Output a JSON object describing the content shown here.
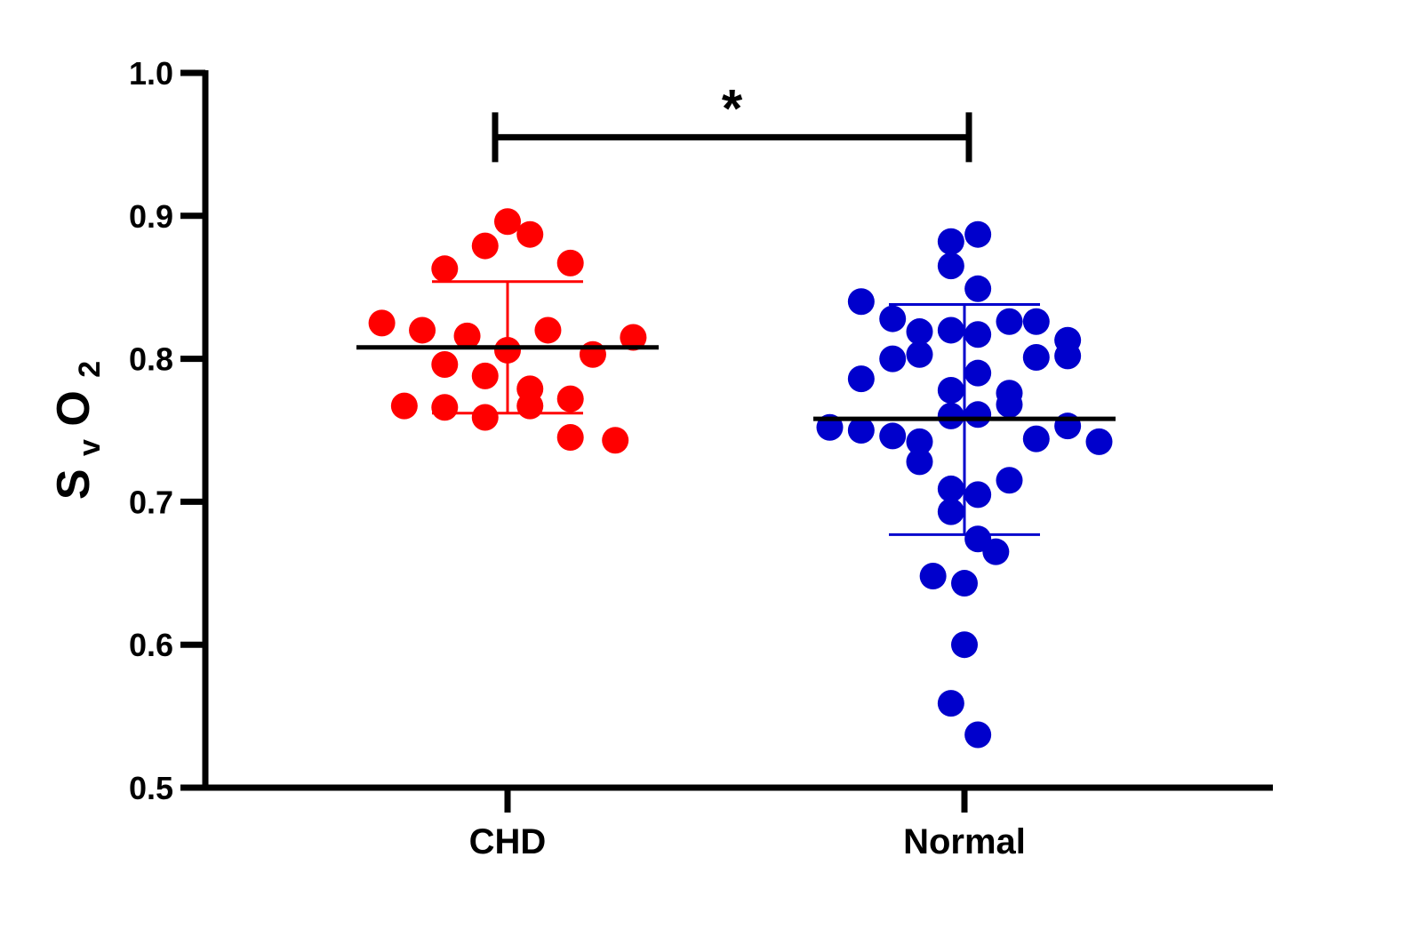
{
  "chart_data": {
    "type": "scatter",
    "title": "",
    "xlabel": "",
    "ylabel": {
      "base": "S",
      "sub1": "v",
      "mid": "O",
      "sub2": "2"
    },
    "ylim": [
      0.5,
      1.0
    ],
    "yticks": [
      "0.5",
      "0.6",
      "0.7",
      "0.8",
      "0.9",
      "1.0"
    ],
    "categories": [
      "CHD",
      "Normal"
    ],
    "significance": {
      "label": "*",
      "between": [
        "CHD",
        "Normal"
      ],
      "y": 0.955
    },
    "series": [
      {
        "name": "CHD",
        "color": "#ff0000",
        "mean": 0.808,
        "sd_upper": 0.854,
        "sd_lower": 0.762,
        "points": [
          {
            "x": 0.0,
            "y": 0.896
          },
          {
            "x": 0.05,
            "y": 0.887
          },
          {
            "x": -0.05,
            "y": 0.879
          },
          {
            "x": -0.14,
            "y": 0.863
          },
          {
            "x": 0.14,
            "y": 0.867
          },
          {
            "x": -0.28,
            "y": 0.825
          },
          {
            "x": -0.19,
            "y": 0.82
          },
          {
            "x": -0.09,
            "y": 0.816
          },
          {
            "x": 0.0,
            "y": 0.806
          },
          {
            "x": 0.09,
            "y": 0.82
          },
          {
            "x": 0.19,
            "y": 0.803
          },
          {
            "x": 0.28,
            "y": 0.815
          },
          {
            "x": -0.14,
            "y": 0.796
          },
          {
            "x": -0.05,
            "y": 0.788
          },
          {
            "x": 0.05,
            "y": 0.779
          },
          {
            "x": 0.14,
            "y": 0.772
          },
          {
            "x": -0.23,
            "y": 0.767
          },
          {
            "x": -0.14,
            "y": 0.766
          },
          {
            "x": 0.05,
            "y": 0.767
          },
          {
            "x": -0.05,
            "y": 0.759
          },
          {
            "x": 0.14,
            "y": 0.745
          },
          {
            "x": 0.24,
            "y": 0.743
          }
        ]
      },
      {
        "name": "Normal",
        "color": "#0000cc",
        "mean": 0.758,
        "sd_upper": 0.838,
        "sd_lower": 0.677,
        "points": [
          {
            "x": 0.03,
            "y": 0.887
          },
          {
            "x": -0.03,
            "y": 0.882
          },
          {
            "x": -0.03,
            "y": 0.865
          },
          {
            "x": 0.03,
            "y": 0.849
          },
          {
            "x": -0.23,
            "y": 0.84
          },
          {
            "x": -0.16,
            "y": 0.828
          },
          {
            "x": 0.1,
            "y": 0.826
          },
          {
            "x": 0.16,
            "y": 0.826
          },
          {
            "x": -0.1,
            "y": 0.819
          },
          {
            "x": -0.03,
            "y": 0.82
          },
          {
            "x": 0.03,
            "y": 0.817
          },
          {
            "x": 0.23,
            "y": 0.813
          },
          {
            "x": -0.1,
            "y": 0.803
          },
          {
            "x": -0.16,
            "y": 0.8
          },
          {
            "x": 0.16,
            "y": 0.801
          },
          {
            "x": 0.23,
            "y": 0.802
          },
          {
            "x": 0.03,
            "y": 0.79
          },
          {
            "x": -0.23,
            "y": 0.786
          },
          {
            "x": -0.03,
            "y": 0.778
          },
          {
            "x": 0.1,
            "y": 0.776
          },
          {
            "x": 0.1,
            "y": 0.768
          },
          {
            "x": 0.03,
            "y": 0.761
          },
          {
            "x": -0.03,
            "y": 0.76
          },
          {
            "x": 0.23,
            "y": 0.753
          },
          {
            "x": -0.3,
            "y": 0.752
          },
          {
            "x": -0.23,
            "y": 0.75
          },
          {
            "x": -0.16,
            "y": 0.746
          },
          {
            "x": 0.16,
            "y": 0.744
          },
          {
            "x": 0.3,
            "y": 0.742
          },
          {
            "x": -0.1,
            "y": 0.742
          },
          {
            "x": -0.1,
            "y": 0.728
          },
          {
            "x": 0.1,
            "y": 0.715
          },
          {
            "x": -0.03,
            "y": 0.709
          },
          {
            "x": 0.03,
            "y": 0.705
          },
          {
            "x": -0.03,
            "y": 0.693
          },
          {
            "x": 0.03,
            "y": 0.674
          },
          {
            "x": 0.07,
            "y": 0.665
          },
          {
            "x": -0.07,
            "y": 0.648
          },
          {
            "x": 0.0,
            "y": 0.643
          },
          {
            "x": 0.0,
            "y": 0.6
          },
          {
            "x": -0.03,
            "y": 0.559
          },
          {
            "x": 0.03,
            "y": 0.537
          }
        ]
      }
    ]
  }
}
